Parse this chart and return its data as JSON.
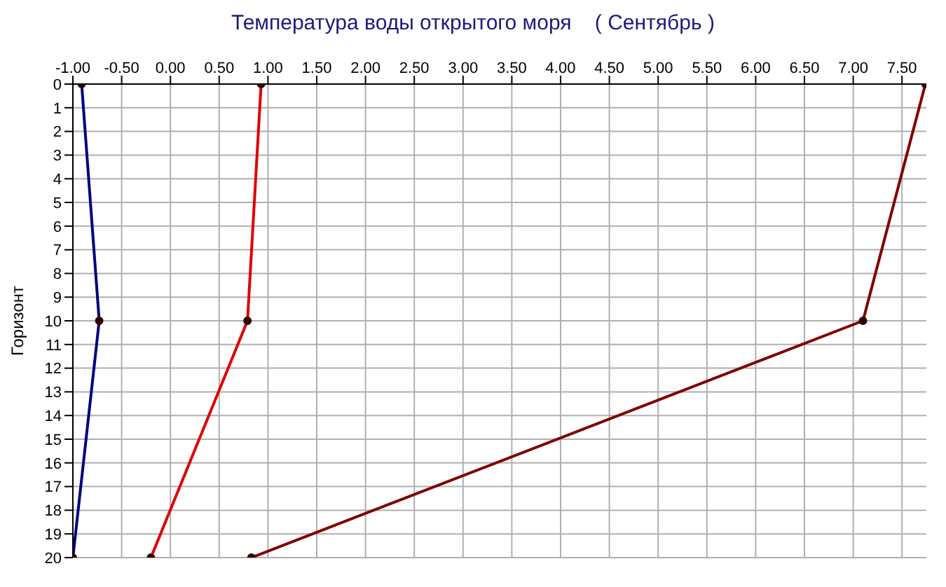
{
  "chart_data": {
    "type": "line",
    "title": "Температура воды открытого моря    ( Сентябрь )",
    "ylabel": "Горизонт",
    "xlim": [
      -1,
      7.75
    ],
    "xticks": [
      {
        "value": -1,
        "label": "-1.00"
      },
      {
        "value": -0.5,
        "label": "-0.50"
      },
      {
        "value": 0,
        "label": "0.00"
      },
      {
        "value": 0.5,
        "label": "0.50"
      },
      {
        "value": 1,
        "label": "1.00"
      },
      {
        "value": 1.5,
        "label": "1.50"
      },
      {
        "value": 2,
        "label": "2.00"
      },
      {
        "value": 2.5,
        "label": "2.50"
      },
      {
        "value": 3,
        "label": "3.00"
      },
      {
        "value": 3.5,
        "label": "3.50"
      },
      {
        "value": 4,
        "label": "4.00"
      },
      {
        "value": 4.5,
        "label": "4.50"
      },
      {
        "value": 5,
        "label": "5.00"
      },
      {
        "value": 5.5,
        "label": "5.50"
      },
      {
        "value": 6,
        "label": "6.00"
      },
      {
        "value": 6.5,
        "label": "6.50"
      },
      {
        "value": 7,
        "label": "7.00"
      },
      {
        "value": 7.5,
        "label": "7.50"
      }
    ],
    "ylim": [
      20,
      0
    ],
    "yticks": [
      0,
      1,
      2,
      3,
      4,
      5,
      6,
      7,
      8,
      9,
      10,
      11,
      12,
      13,
      14,
      15,
      16,
      17,
      18,
      19,
      20
    ],
    "grid": true,
    "marker": "circle",
    "line_style": "solid",
    "series": [
      {
        "color": "#000080",
        "x": [
          -0.91,
          -0.73,
          -1.0
        ],
        "values": [
          0,
          10,
          20
        ]
      },
      {
        "color": "#e00000",
        "x": [
          0.93,
          0.79,
          -0.2
        ],
        "values": [
          0,
          10,
          20
        ]
      },
      {
        "color": "#800000",
        "x": [
          7.74,
          7.1,
          0.83
        ],
        "values": [
          0,
          10,
          20
        ]
      }
    ]
  }
}
